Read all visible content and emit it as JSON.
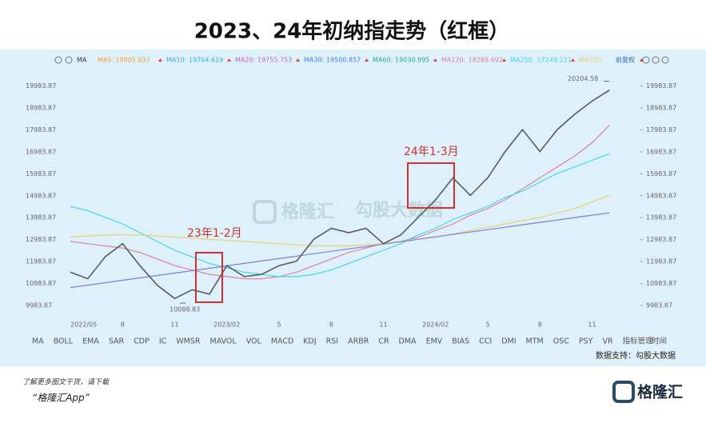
{
  "chart_data": {
    "type": "line",
    "title": "2023、24年初纳指走势（红框）",
    "legend_head": "MA",
    "legend_right": "前复权",
    "categories": [
      "2022/05",
      null,
      null,
      "8",
      null,
      null,
      "11",
      null,
      null,
      "2023/02",
      null,
      null,
      "5",
      null,
      null,
      "8",
      null,
      null,
      "11",
      null,
      null,
      "2024/02",
      null,
      null,
      "5",
      null,
      null,
      "8",
      null,
      null,
      "11",
      null
    ],
    "xlabel": "时间",
    "ylim": [
      9400,
      20700
    ],
    "yticks": [
      9983.87,
      10983.87,
      11983.87,
      12983.87,
      13983.87,
      14983.87,
      15983.87,
      16983.87,
      17983.87,
      18983.87,
      19983.87
    ],
    "grid": false,
    "price": {
      "color": "#5a5a5a",
      "values": [
        11500,
        11200,
        12200,
        12800,
        11800,
        10900,
        10300,
        10700,
        10500,
        11800,
        11300,
        11400,
        11800,
        12000,
        13000,
        13500,
        13300,
        13500,
        12800,
        13200,
        14000,
        14800,
        15800,
        15000,
        15800,
        17000,
        18000,
        17000,
        18000,
        18700,
        19300,
        19800
      ]
    },
    "high": 20204.58,
    "low": 10088.83,
    "series": [
      {
        "name": "MA5:",
        "value": 19805.037,
        "color": "#f0a030"
      },
      {
        "name": "MA10:",
        "value": 19764.619,
        "color": "#3aa8d8"
      },
      {
        "name": "MA20:",
        "value": 19755.753,
        "color": "#c060c0"
      },
      {
        "name": "MA30:",
        "value": 19500.857,
        "color": "#4a80e0"
      },
      {
        "name": "MA60:",
        "value": 19030.995,
        "color": "#30a890"
      },
      {
        "name": "MA120:",
        "value": 18289.692,
        "color": "#e080a0",
        "values": [
          12900,
          12800,
          12700,
          12600,
          12400,
          12100,
          11800,
          11600,
          11400,
          11300,
          11200,
          11200,
          11300,
          11500,
          11800,
          12100,
          12400,
          12600,
          12800,
          12900,
          13100,
          13400,
          13700,
          14100,
          14400,
          14800,
          15300,
          15800,
          16300,
          16800,
          17400,
          18200
        ]
      },
      {
        "name": "MA250:",
        "value": 17249.121,
        "color": "#40d8e8",
        "values": [
          14500,
          14300,
          14000,
          13700,
          13300,
          12900,
          12500,
          12200,
          11900,
          11700,
          11500,
          11400,
          11300,
          11300,
          11400,
          11600,
          11900,
          12200,
          12500,
          12800,
          13200,
          13500,
          13900,
          14200,
          14500,
          14900,
          15200,
          15600,
          16000,
          16300,
          16600,
          16900
        ]
      },
      {
        "name": "MA500:",
        "color": "#e8d070",
        "values": [
          13100,
          13150,
          13200,
          13200,
          13200,
          13150,
          13100,
          13050,
          13000,
          12950,
          12900,
          12850,
          12800,
          12750,
          12700,
          12700,
          12700,
          12750,
          12800,
          12900,
          13000,
          13100,
          13250,
          13400,
          13550,
          13700,
          13850,
          14000,
          14200,
          14400,
          14700,
          15000
        ]
      },
      {
        "color": "#7b7fd6",
        "values": [
          10800,
          10910,
          11020,
          11130,
          11240,
          11350,
          11460,
          11570,
          11680,
          11790,
          11900,
          12010,
          12120,
          12230,
          12340,
          12450,
          12560,
          12670,
          12780,
          12890,
          13000,
          13110,
          13220,
          13330,
          13440,
          13550,
          13660,
          13770,
          13880,
          13990,
          14100,
          14200
        ]
      }
    ],
    "annotations": [
      "23年1-2月",
      "24年1-3月"
    ],
    "indicator_tabs": [
      "MA",
      "BOLL",
      "EMA",
      "SAR",
      "CDP",
      "IC",
      "WMSR",
      "MAVOL",
      "VOL",
      "MACD",
      "KDJ",
      "RSI",
      "ARBR",
      "CR",
      "DMA",
      "EMV",
      "BIAS",
      "CCI",
      "DMI",
      "MTM",
      "OSC",
      "PSY",
      "VR",
      "指标管理"
    ],
    "watermark": [
      "格隆汇",
      "勾股大数据"
    ],
    "source": "数据支持：勾股大数据"
  },
  "footer": {
    "line1": "了解更多图文干货，请下载",
    "line2": "“格隆汇App”",
    "logo": "格隆汇"
  }
}
